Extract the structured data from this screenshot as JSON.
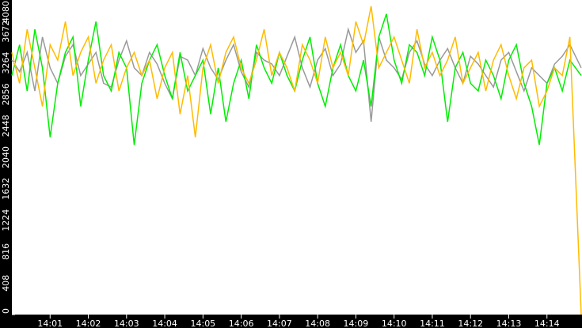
{
  "chart_data": {
    "type": "line",
    "title": "",
    "xlabel": "",
    "ylabel": "",
    "xlim": [
      "14:00:00",
      "14:14:55"
    ],
    "ylim": [
      0,
      4080
    ],
    "grid": false,
    "legend": "none",
    "yticks": [
      0,
      408,
      816,
      1224,
      1632,
      2040,
      2448,
      2856,
      3264,
      3672,
      4080
    ],
    "xticks": [
      "14:01",
      "14:02",
      "14:03",
      "14:04",
      "14:05",
      "14:06",
      "14:07",
      "14:08",
      "14:09",
      "14:10",
      "14:11",
      "14:12",
      "14:13",
      "14:14"
    ],
    "x_step_seconds": 12,
    "colors": {
      "axis_bg": "#000000",
      "axis_text": "#ffffff",
      "plot_bg": "#ffffff"
    },
    "series": [
      {
        "color": "#999999",
        "values": [
          3300,
          3150,
          3400,
          2900,
          3600,
          3200,
          3000,
          3350,
          3500,
          3100,
          3250,
          3400,
          3000,
          2950,
          3300,
          3550,
          3200,
          3100,
          3400,
          3250,
          3000,
          2800,
          3350,
          3300,
          3100,
          3450,
          3200,
          3050,
          3300,
          3500,
          3150,
          2950,
          3400,
          3300,
          3250,
          3100,
          3350,
          3600,
          3200,
          2950,
          3300,
          3450,
          3100,
          3250,
          3700,
          3400,
          3550,
          2500,
          3600,
          3300,
          3200,
          3050,
          3400,
          3550,
          3250,
          3100,
          3300,
          3450,
          3200,
          3000,
          3350,
          3250,
          3100,
          2950,
          3300,
          3400,
          3150,
          2900,
          3200,
          3100,
          3000,
          3250,
          3350,
          3500,
          3200
        ]
      },
      {
        "color": "#00ee00",
        "values": [
          3100,
          3500,
          2900,
          3700,
          3200,
          2300,
          3000,
          3400,
          3600,
          2700,
          3300,
          3800,
          3100,
          2900,
          3400,
          3200,
          2200,
          3000,
          3300,
          3500,
          3100,
          2800,
          3400,
          2900,
          3100,
          3300,
          2600,
          3200,
          2500,
          3000,
          3300,
          2800,
          3500,
          3200,
          3000,
          3400,
          3100,
          2900,
          3300,
          3600,
          3000,
          2700,
          3200,
          3500,
          3100,
          2900,
          3300,
          2700,
          3600,
          3900,
          3300,
          3000,
          3500,
          3400,
          3100,
          3600,
          3300,
          2500,
          3200,
          3400,
          3000,
          2900,
          3300,
          3100,
          2800,
          3300,
          3500,
          3000,
          2700,
          2200,
          3000,
          3200,
          2900,
          3300,
          3100
        ]
      },
      {
        "color": "#ffbb00",
        "values": [
          3400,
          3000,
          3700,
          3200,
          2700,
          3500,
          3300,
          3800,
          3100,
          3400,
          3600,
          3000,
          3300,
          3500,
          2900,
          3200,
          3400,
          3100,
          3300,
          2800,
          3200,
          3400,
          2600,
          3100,
          2300,
          3200,
          3500,
          3000,
          3400,
          3600,
          3200,
          3000,
          3300,
          3700,
          3100,
          3400,
          3200,
          2900,
          3500,
          3300,
          3000,
          3600,
          3200,
          3400,
          3100,
          3800,
          3500,
          4000,
          3200,
          3400,
          3600,
          3300,
          3000,
          3700,
          3200,
          3400,
          3100,
          3300,
          3600,
          3000,
          3200,
          3400,
          2900,
          3300,
          3500,
          3100,
          2800,
          3200,
          3300,
          2700,
          2900,
          3200,
          3100,
          3600,
          0
        ]
      }
    ]
  }
}
